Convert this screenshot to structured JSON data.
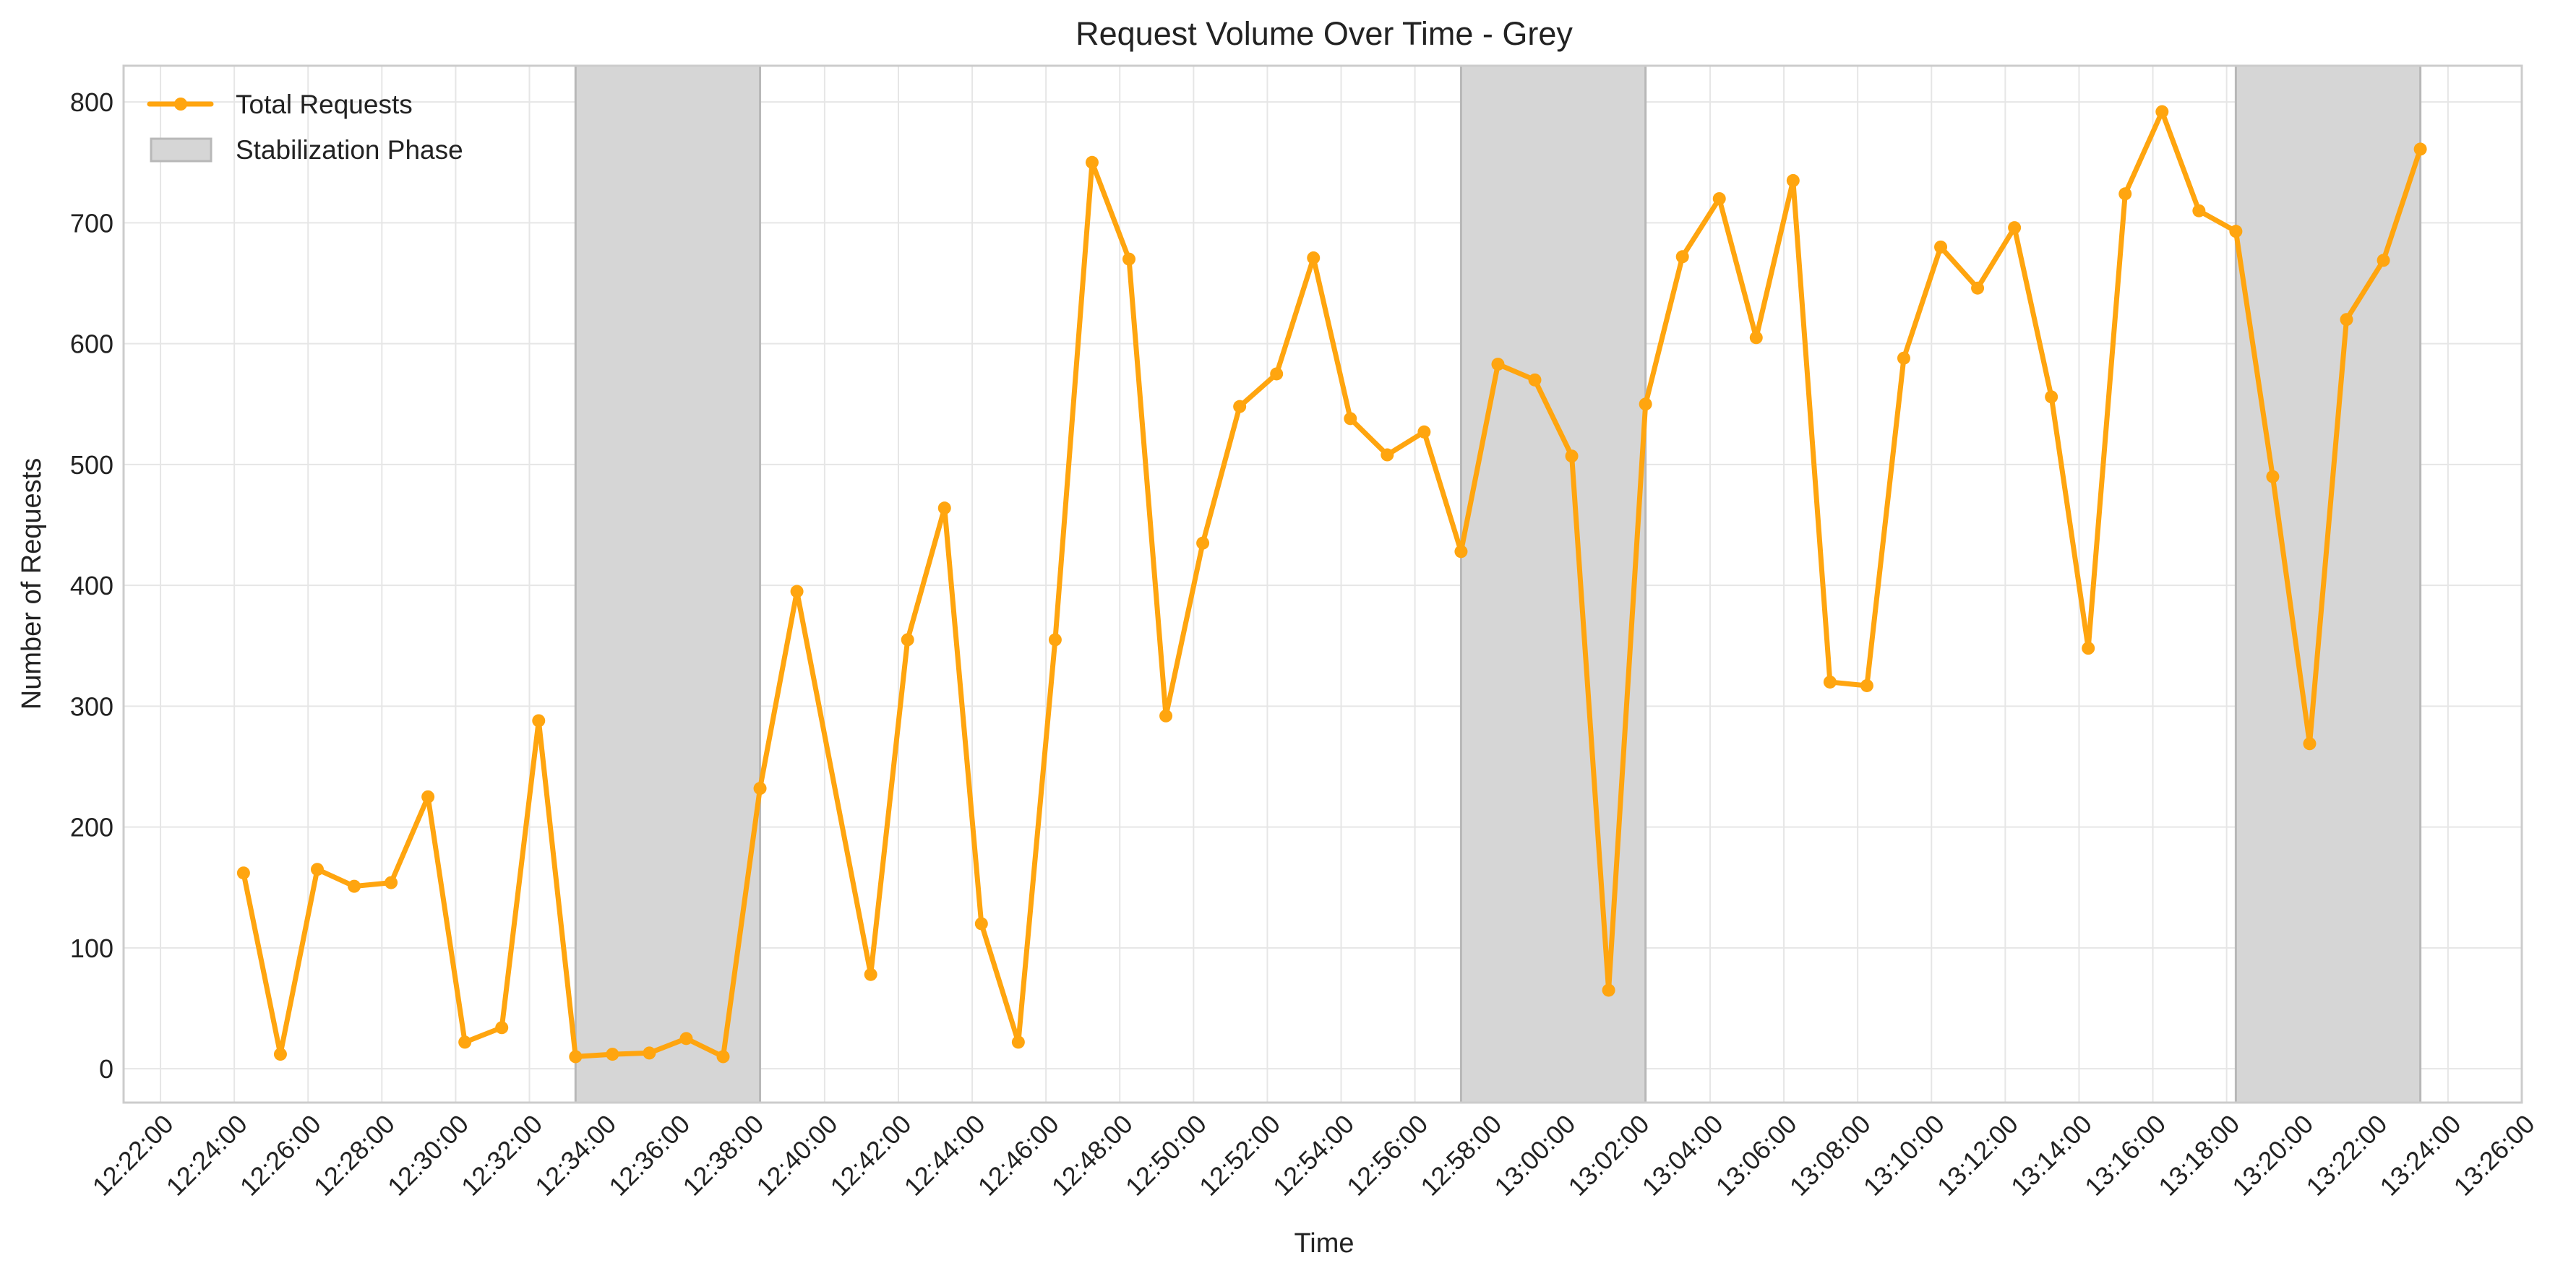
{
  "chart_data": {
    "type": "line",
    "title": "Request Volume Over Time - Grey",
    "xlabel": "Time",
    "ylabel": "Number of Requests",
    "xlim": [
      "12:21:00",
      "13:26:00"
    ],
    "ylim": [
      -28,
      830
    ],
    "x_ticks": [
      "12:22:00",
      "12:24:00",
      "12:26:00",
      "12:28:00",
      "12:30:00",
      "12:32:00",
      "12:34:00",
      "12:36:00",
      "12:38:00",
      "12:40:00",
      "12:42:00",
      "12:44:00",
      "12:46:00",
      "12:48:00",
      "12:50:00",
      "12:52:00",
      "12:54:00",
      "12:56:00",
      "12:58:00",
      "13:00:00",
      "13:02:00",
      "13:04:00",
      "13:06:00",
      "13:08:00",
      "13:10:00",
      "13:12:00",
      "13:14:00",
      "13:16:00",
      "13:18:00",
      "13:20:00",
      "13:22:00",
      "13:24:00",
      "13:26:00"
    ],
    "y_ticks": [
      0,
      100,
      200,
      300,
      400,
      500,
      600,
      700,
      800
    ],
    "grid": true,
    "legend_position": "top-left",
    "series": [
      {
        "name": "Total Requests",
        "color": "#ffa50f",
        "marker": "circle",
        "points": [
          [
            "12:24:15",
            162
          ],
          [
            "12:25:15",
            12
          ],
          [
            "12:26:15",
            165
          ],
          [
            "12:27:15",
            151
          ],
          [
            "12:28:15",
            154
          ],
          [
            "12:29:15",
            225
          ],
          [
            "12:30:15",
            22
          ],
          [
            "12:31:15",
            34
          ],
          [
            "12:32:15",
            288
          ],
          [
            "12:33:15",
            10
          ],
          [
            "12:34:15",
            12
          ],
          [
            "12:35:15",
            13
          ],
          [
            "12:36:15",
            25
          ],
          [
            "12:37:15",
            10
          ],
          [
            "12:38:15",
            232
          ],
          [
            "12:39:15",
            395
          ],
          [
            "12:41:15",
            78
          ],
          [
            "12:42:15",
            355
          ],
          [
            "12:43:15",
            464
          ],
          [
            "12:44:15",
            120
          ],
          [
            "12:45:15",
            22
          ],
          [
            "12:46:15",
            355
          ],
          [
            "12:47:15",
            750
          ],
          [
            "12:48:15",
            670
          ],
          [
            "12:49:15",
            292
          ],
          [
            "12:50:15",
            435
          ],
          [
            "12:51:15",
            548
          ],
          [
            "12:52:15",
            575
          ],
          [
            "12:53:15",
            671
          ],
          [
            "12:54:15",
            538
          ],
          [
            "12:55:15",
            508
          ],
          [
            "12:56:15",
            527
          ],
          [
            "12:57:15",
            428
          ],
          [
            "12:58:15",
            583
          ],
          [
            "12:59:15",
            570
          ],
          [
            "13:00:15",
            507
          ],
          [
            "13:01:15",
            65
          ],
          [
            "13:02:15",
            550
          ],
          [
            "13:03:15",
            672
          ],
          [
            "13:04:15",
            720
          ],
          [
            "13:05:15",
            605
          ],
          [
            "13:06:15",
            735
          ],
          [
            "13:07:15",
            320
          ],
          [
            "13:08:15",
            317
          ],
          [
            "13:09:15",
            588
          ],
          [
            "13:10:15",
            680
          ],
          [
            "13:11:15",
            646
          ],
          [
            "13:12:15",
            696
          ],
          [
            "13:13:15",
            556
          ],
          [
            "13:14:15",
            348
          ],
          [
            "13:15:15",
            724
          ],
          [
            "13:16:15",
            792
          ],
          [
            "13:17:15",
            710
          ],
          [
            "13:18:15",
            693
          ],
          [
            "13:19:15",
            490
          ],
          [
            "13:20:15",
            269
          ],
          [
            "13:21:15",
            620
          ],
          [
            "13:22:15",
            669
          ],
          [
            "13:23:15",
            761
          ]
        ]
      }
    ],
    "shaded_regions": {
      "name": "Stabilization Phase",
      "color": "#d6d6d6",
      "ranges": [
        [
          "12:33:15",
          "12:38:15"
        ],
        [
          "12:57:15",
          "13:02:15"
        ],
        [
          "13:18:15",
          "13:23:15"
        ]
      ]
    }
  }
}
